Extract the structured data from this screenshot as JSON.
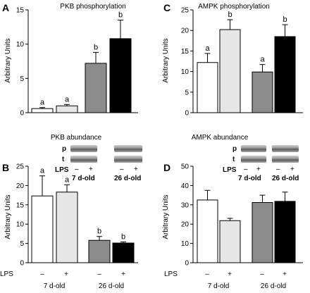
{
  "panels": [
    {
      "letter": "A",
      "title": "PKB phosphorylation",
      "ylabel": "Arbitrary Units"
    },
    {
      "letter": "C",
      "title": "AMPK phosphorylation",
      "ylabel": "Arbitrary Units"
    },
    {
      "letter": "B",
      "title": "PKB abundance",
      "ylabel": "Arbitrary Units",
      "blot": {
        "row_labels": [
          "p",
          "t"
        ],
        "lps_label": "LPS",
        "lps_marks": [
          "–",
          "+",
          "–",
          "+"
        ],
        "group_labels": [
          "7 d-old",
          "26 d-old"
        ]
      }
    },
    {
      "letter": "D",
      "title": "AMPK abundance",
      "ylabel": "Arbitrary Units",
      "blot": {
        "row_labels": [
          "p",
          "t"
        ],
        "lps_label": "LPS",
        "lps_marks": [
          "–",
          "+",
          "–",
          "+"
        ],
        "group_labels": [
          "7 d-old",
          "26 d-old"
        ]
      }
    }
  ],
  "bottom_axis": {
    "lps_label": "LPS",
    "lps_marks": [
      "–",
      "+",
      "–",
      "+"
    ],
    "group_labels": [
      "7 d-old",
      "26 d-old"
    ]
  },
  "colors": {
    "white": "#ffffff",
    "light": "#e6e6e6",
    "gray": "#8c8c8c",
    "black": "#000000"
  },
  "chart_data": [
    {
      "type": "bar",
      "panel": "A",
      "title": "PKB phosphorylation",
      "ylabel": "Arbitrary Units",
      "categories": [
        "7 d-old –",
        "7 d-old +",
        "26 d-old –",
        "26 d-old +"
      ],
      "values": [
        0.6,
        1.0,
        7.2,
        10.8
      ],
      "errors": [
        0.15,
        0.2,
        1.6,
        2.7
      ],
      "sig_letters": [
        "a",
        "a",
        "b",
        "b"
      ],
      "bar_colors": [
        "white",
        "light",
        "gray",
        "black"
      ],
      "ylim": [
        0,
        15
      ],
      "yticks": [
        0,
        5,
        10,
        15
      ]
    },
    {
      "type": "bar",
      "panel": "C",
      "title": "AMPK phosphorylation",
      "ylabel": "Arbitrary Units",
      "categories": [
        "7 d-old –",
        "7 d-old +",
        "26 d-old –",
        "26 d-old +"
      ],
      "values": [
        12.2,
        20.2,
        9.9,
        18.5
      ],
      "errors": [
        2.2,
        2.4,
        1.8,
        2.9
      ],
      "sig_letters": [
        "a",
        "b",
        "a",
        "b"
      ],
      "bar_colors": [
        "white",
        "light",
        "gray",
        "black"
      ],
      "ylim": [
        0,
        25
      ],
      "yticks": [
        0,
        5,
        10,
        15,
        20,
        25
      ]
    },
    {
      "type": "bar",
      "panel": "B",
      "title": "PKB abundance",
      "ylabel": "Arbitrary Units",
      "categories": [
        "7 d-old –",
        "7 d-old +",
        "26 d-old –",
        "26 d-old +"
      ],
      "values": [
        17.3,
        18.3,
        5.8,
        5.1
      ],
      "errors": [
        5.2,
        1.9,
        1.0,
        0.3
      ],
      "sig_letters": [
        "a",
        "a",
        "b",
        "b"
      ],
      "bar_colors": [
        "white",
        "light",
        "gray",
        "black"
      ],
      "ylim": [
        0,
        25
      ],
      "yticks": [
        0,
        5,
        10,
        15,
        20,
        25
      ]
    },
    {
      "type": "bar",
      "panel": "D",
      "title": "AMPK abundance",
      "ylabel": "Arbitrary Units",
      "categories": [
        "7 d-old –",
        "7 d-old +",
        "26 d-old –",
        "26 d-old +"
      ],
      "values": [
        32.5,
        21.8,
        31.2,
        31.8
      ],
      "errors": [
        5.0,
        1.2,
        3.8,
        4.8
      ],
      "sig_letters": [
        "",
        "",
        "",
        ""
      ],
      "bar_colors": [
        "white",
        "light",
        "gray",
        "black"
      ],
      "ylim": [
        0,
        50
      ],
      "yticks": [
        0,
        10,
        20,
        30,
        40,
        50
      ]
    }
  ]
}
